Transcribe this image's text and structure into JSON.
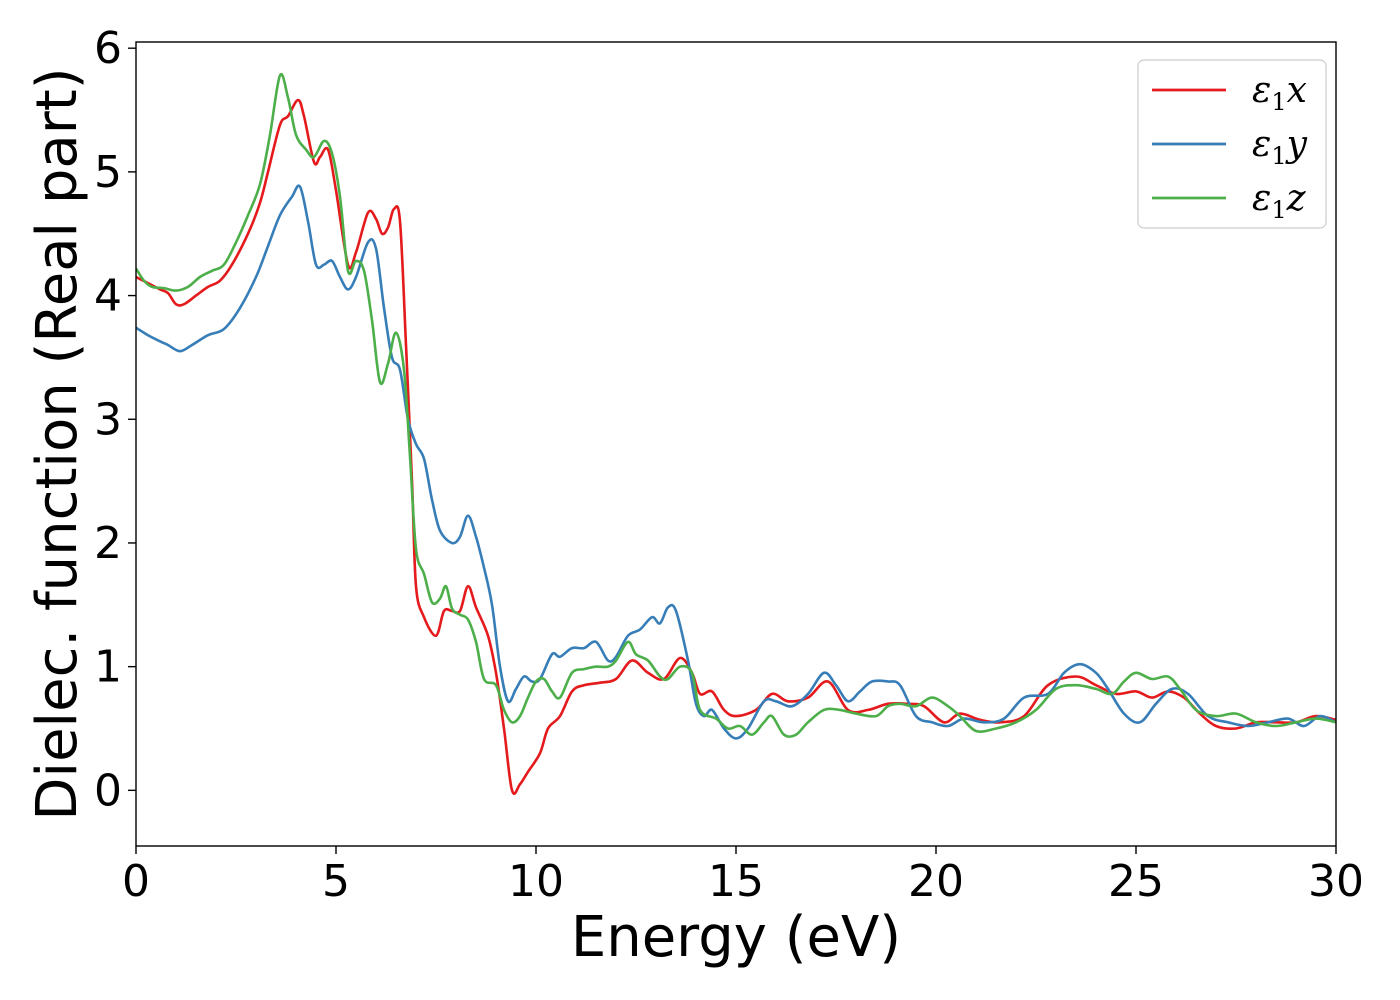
{
  "chart_data": {
    "type": "line",
    "title": "",
    "xlabel": "Energy (eV)",
    "ylabel": "Dielec. function (Real part)",
    "xlim": [
      0,
      30
    ],
    "ylim": [
      -0.45,
      6.05
    ],
    "xticks": [
      0,
      5,
      10,
      15,
      20,
      25,
      30
    ],
    "yticks": [
      0,
      1,
      2,
      3,
      4,
      5,
      6
    ],
    "grid": false,
    "legend_position": "top-right",
    "series": [
      {
        "name": "ε1x",
        "legend_main": "ε",
        "legend_sub": "1",
        "legend_var": "x",
        "color": "#e41a1c",
        "points": [
          [
            0,
            4.15
          ],
          [
            0.3,
            4.1
          ],
          [
            0.6,
            4.05
          ],
          [
            0.8,
            4.02
          ],
          [
            1.0,
            3.93
          ],
          [
            1.2,
            3.93
          ],
          [
            1.5,
            4.0
          ],
          [
            1.8,
            4.07
          ],
          [
            2.1,
            4.12
          ],
          [
            2.4,
            4.25
          ],
          [
            2.8,
            4.5
          ],
          [
            3.1,
            4.75
          ],
          [
            3.3,
            5.0
          ],
          [
            3.6,
            5.38
          ],
          [
            3.8,
            5.45
          ],
          [
            4.05,
            5.58
          ],
          [
            4.2,
            5.45
          ],
          [
            4.45,
            5.08
          ],
          [
            4.6,
            5.12
          ],
          [
            4.8,
            5.18
          ],
          [
            5.0,
            4.85
          ],
          [
            5.3,
            4.25
          ],
          [
            5.5,
            4.35
          ],
          [
            5.8,
            4.67
          ],
          [
            6.0,
            4.62
          ],
          [
            6.15,
            4.5
          ],
          [
            6.3,
            4.55
          ],
          [
            6.45,
            4.7
          ],
          [
            6.6,
            4.6
          ],
          [
            6.75,
            3.6
          ],
          [
            6.9,
            2.5
          ],
          [
            7.0,
            1.65
          ],
          [
            7.2,
            1.4
          ],
          [
            7.5,
            1.25
          ],
          [
            7.7,
            1.45
          ],
          [
            7.9,
            1.45
          ],
          [
            8.1,
            1.45
          ],
          [
            8.3,
            1.65
          ],
          [
            8.5,
            1.48
          ],
          [
            8.8,
            1.25
          ],
          [
            9.0,
            0.95
          ],
          [
            9.2,
            0.5
          ],
          [
            9.4,
            0.0
          ],
          [
            9.6,
            0.05
          ],
          [
            9.8,
            0.15
          ],
          [
            10.1,
            0.3
          ],
          [
            10.3,
            0.5
          ],
          [
            10.6,
            0.6
          ],
          [
            10.9,
            0.8
          ],
          [
            11.2,
            0.85
          ],
          [
            11.6,
            0.87
          ],
          [
            12.0,
            0.9
          ],
          [
            12.4,
            1.05
          ],
          [
            12.8,
            0.95
          ],
          [
            13.2,
            0.9
          ],
          [
            13.6,
            1.07
          ],
          [
            13.9,
            0.95
          ],
          [
            14.1,
            0.78
          ],
          [
            14.4,
            0.8
          ],
          [
            14.7,
            0.65
          ],
          [
            15.0,
            0.6
          ],
          [
            15.5,
            0.65
          ],
          [
            15.9,
            0.78
          ],
          [
            16.3,
            0.72
          ],
          [
            16.8,
            0.75
          ],
          [
            17.3,
            0.88
          ],
          [
            17.8,
            0.65
          ],
          [
            18.3,
            0.65
          ],
          [
            18.8,
            0.7
          ],
          [
            19.3,
            0.7
          ],
          [
            19.7,
            0.68
          ],
          [
            20.2,
            0.55
          ],
          [
            20.6,
            0.62
          ],
          [
            21.1,
            0.57
          ],
          [
            21.6,
            0.55
          ],
          [
            22.2,
            0.6
          ],
          [
            22.8,
            0.85
          ],
          [
            23.5,
            0.92
          ],
          [
            24.0,
            0.85
          ],
          [
            24.5,
            0.78
          ],
          [
            25.0,
            0.8
          ],
          [
            25.4,
            0.75
          ],
          [
            25.8,
            0.8
          ],
          [
            26.2,
            0.75
          ],
          [
            26.6,
            0.62
          ],
          [
            27.0,
            0.52
          ],
          [
            27.5,
            0.5
          ],
          [
            28.0,
            0.55
          ],
          [
            28.5,
            0.55
          ],
          [
            29.0,
            0.55
          ],
          [
            29.5,
            0.6
          ],
          [
            30.0,
            0.57
          ]
        ]
      },
      {
        "name": "ε1y",
        "legend_main": "ε",
        "legend_sub": "1",
        "legend_var": "y",
        "color": "#377eb8",
        "points": [
          [
            0,
            3.74
          ],
          [
            0.3,
            3.68
          ],
          [
            0.6,
            3.63
          ],
          [
            0.8,
            3.6
          ],
          [
            1.1,
            3.55
          ],
          [
            1.4,
            3.6
          ],
          [
            1.8,
            3.68
          ],
          [
            2.2,
            3.73
          ],
          [
            2.6,
            3.9
          ],
          [
            3.0,
            4.15
          ],
          [
            3.3,
            4.4
          ],
          [
            3.6,
            4.65
          ],
          [
            3.9,
            4.8
          ],
          [
            4.1,
            4.88
          ],
          [
            4.3,
            4.6
          ],
          [
            4.5,
            4.25
          ],
          [
            4.7,
            4.25
          ],
          [
            4.9,
            4.28
          ],
          [
            5.1,
            4.15
          ],
          [
            5.3,
            4.05
          ],
          [
            5.5,
            4.15
          ],
          [
            5.8,
            4.43
          ],
          [
            6.0,
            4.38
          ],
          [
            6.2,
            3.9
          ],
          [
            6.4,
            3.5
          ],
          [
            6.6,
            3.4
          ],
          [
            6.8,
            3.0
          ],
          [
            7.0,
            2.8
          ],
          [
            7.2,
            2.68
          ],
          [
            7.4,
            2.35
          ],
          [
            7.6,
            2.1
          ],
          [
            7.9,
            2.0
          ],
          [
            8.1,
            2.05
          ],
          [
            8.3,
            2.22
          ],
          [
            8.5,
            2.05
          ],
          [
            8.7,
            1.8
          ],
          [
            8.9,
            1.5
          ],
          [
            9.1,
            1.0
          ],
          [
            9.3,
            0.72
          ],
          [
            9.5,
            0.82
          ],
          [
            9.7,
            0.92
          ],
          [
            9.9,
            0.88
          ],
          [
            10.1,
            0.9
          ],
          [
            10.4,
            1.1
          ],
          [
            10.6,
            1.08
          ],
          [
            10.9,
            1.15
          ],
          [
            11.2,
            1.15
          ],
          [
            11.5,
            1.2
          ],
          [
            11.8,
            1.05
          ],
          [
            12.0,
            1.08
          ],
          [
            12.3,
            1.25
          ],
          [
            12.6,
            1.3
          ],
          [
            12.9,
            1.4
          ],
          [
            13.1,
            1.35
          ],
          [
            13.3,
            1.48
          ],
          [
            13.5,
            1.45
          ],
          [
            13.8,
            1.05
          ],
          [
            14.0,
            0.7
          ],
          [
            14.2,
            0.6
          ],
          [
            14.4,
            0.65
          ],
          [
            14.7,
            0.5
          ],
          [
            15.0,
            0.42
          ],
          [
            15.3,
            0.5
          ],
          [
            15.7,
            0.72
          ],
          [
            16.0,
            0.72
          ],
          [
            16.4,
            0.68
          ],
          [
            16.8,
            0.78
          ],
          [
            17.2,
            0.95
          ],
          [
            17.5,
            0.85
          ],
          [
            17.8,
            0.72
          ],
          [
            18.1,
            0.8
          ],
          [
            18.4,
            0.88
          ],
          [
            18.8,
            0.88
          ],
          [
            19.1,
            0.85
          ],
          [
            19.5,
            0.6
          ],
          [
            19.9,
            0.55
          ],
          [
            20.3,
            0.52
          ],
          [
            20.7,
            0.58
          ],
          [
            21.2,
            0.55
          ],
          [
            21.7,
            0.58
          ],
          [
            22.2,
            0.75
          ],
          [
            22.8,
            0.78
          ],
          [
            23.2,
            0.95
          ],
          [
            23.6,
            1.02
          ],
          [
            24.0,
            0.95
          ],
          [
            24.3,
            0.82
          ],
          [
            24.7,
            0.62
          ],
          [
            25.1,
            0.55
          ],
          [
            25.5,
            0.7
          ],
          [
            25.9,
            0.82
          ],
          [
            26.3,
            0.78
          ],
          [
            26.8,
            0.6
          ],
          [
            27.3,
            0.55
          ],
          [
            27.8,
            0.52
          ],
          [
            28.3,
            0.55
          ],
          [
            28.8,
            0.58
          ],
          [
            29.2,
            0.52
          ],
          [
            29.6,
            0.6
          ],
          [
            30.0,
            0.55
          ]
        ]
      },
      {
        "name": "ε1z",
        "legend_main": "ε",
        "legend_sub": "1",
        "legend_var": "z",
        "color": "#4daf4a",
        "points": [
          [
            0,
            4.22
          ],
          [
            0.2,
            4.12
          ],
          [
            0.4,
            4.07
          ],
          [
            0.7,
            4.06
          ],
          [
            1.0,
            4.04
          ],
          [
            1.3,
            4.07
          ],
          [
            1.6,
            4.15
          ],
          [
            1.9,
            4.2
          ],
          [
            2.2,
            4.25
          ],
          [
            2.5,
            4.43
          ],
          [
            2.8,
            4.65
          ],
          [
            3.1,
            4.9
          ],
          [
            3.35,
            5.3
          ],
          [
            3.6,
            5.78
          ],
          [
            3.8,
            5.6
          ],
          [
            4.0,
            5.3
          ],
          [
            4.25,
            5.18
          ],
          [
            4.45,
            5.12
          ],
          [
            4.7,
            5.25
          ],
          [
            4.9,
            5.15
          ],
          [
            5.1,
            4.8
          ],
          [
            5.3,
            4.2
          ],
          [
            5.5,
            4.28
          ],
          [
            5.7,
            4.2
          ],
          [
            5.9,
            3.8
          ],
          [
            6.1,
            3.3
          ],
          [
            6.3,
            3.45
          ],
          [
            6.5,
            3.7
          ],
          [
            6.7,
            3.4
          ],
          [
            6.85,
            2.7
          ],
          [
            7.0,
            1.95
          ],
          [
            7.2,
            1.75
          ],
          [
            7.4,
            1.52
          ],
          [
            7.6,
            1.55
          ],
          [
            7.75,
            1.65
          ],
          [
            7.9,
            1.47
          ],
          [
            8.1,
            1.42
          ],
          [
            8.3,
            1.38
          ],
          [
            8.5,
            1.2
          ],
          [
            8.7,
            0.9
          ],
          [
            9.0,
            0.85
          ],
          [
            9.2,
            0.65
          ],
          [
            9.4,
            0.55
          ],
          [
            9.6,
            0.6
          ],
          [
            9.8,
            0.75
          ],
          [
            10.0,
            0.88
          ],
          [
            10.2,
            0.9
          ],
          [
            10.4,
            0.8
          ],
          [
            10.6,
            0.75
          ],
          [
            10.9,
            0.95
          ],
          [
            11.2,
            0.98
          ],
          [
            11.5,
            1.0
          ],
          [
            11.8,
            1.0
          ],
          [
            12.0,
            1.05
          ],
          [
            12.3,
            1.2
          ],
          [
            12.5,
            1.1
          ],
          [
            12.8,
            1.05
          ],
          [
            13.1,
            0.92
          ],
          [
            13.3,
            0.9
          ],
          [
            13.6,
            1.0
          ],
          [
            13.9,
            0.95
          ],
          [
            14.1,
            0.65
          ],
          [
            14.5,
            0.58
          ],
          [
            14.8,
            0.5
          ],
          [
            15.1,
            0.52
          ],
          [
            15.4,
            0.45
          ],
          [
            15.7,
            0.55
          ],
          [
            15.9,
            0.6
          ],
          [
            16.2,
            0.45
          ],
          [
            16.5,
            0.45
          ],
          [
            16.8,
            0.55
          ],
          [
            17.2,
            0.65
          ],
          [
            17.6,
            0.65
          ],
          [
            18.0,
            0.62
          ],
          [
            18.5,
            0.6
          ],
          [
            18.8,
            0.68
          ],
          [
            19.1,
            0.7
          ],
          [
            19.5,
            0.68
          ],
          [
            19.9,
            0.75
          ],
          [
            20.3,
            0.68
          ],
          [
            20.6,
            0.6
          ],
          [
            21.0,
            0.48
          ],
          [
            21.5,
            0.5
          ],
          [
            22.0,
            0.55
          ],
          [
            22.5,
            0.65
          ],
          [
            23.0,
            0.82
          ],
          [
            23.5,
            0.85
          ],
          [
            24.0,
            0.82
          ],
          [
            24.4,
            0.78
          ],
          [
            24.7,
            0.88
          ],
          [
            25.0,
            0.95
          ],
          [
            25.4,
            0.9
          ],
          [
            25.8,
            0.92
          ],
          [
            26.1,
            0.82
          ],
          [
            26.5,
            0.65
          ],
          [
            27.0,
            0.6
          ],
          [
            27.5,
            0.62
          ],
          [
            28.0,
            0.55
          ],
          [
            28.5,
            0.52
          ],
          [
            29.0,
            0.55
          ],
          [
            29.5,
            0.58
          ],
          [
            30.0,
            0.55
          ]
        ]
      }
    ]
  }
}
